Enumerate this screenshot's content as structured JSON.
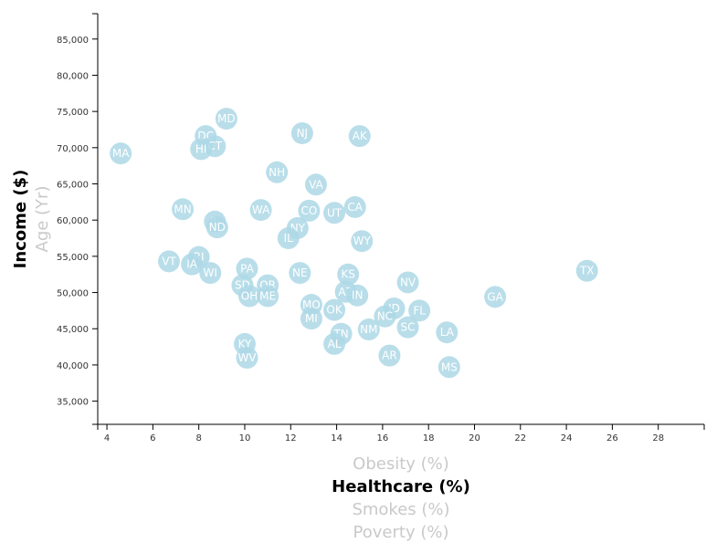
{
  "chart_data": {
    "type": "scatter",
    "x_axis": {
      "ticks": [
        4,
        6,
        8,
        10,
        12,
        14,
        16,
        18,
        20,
        22,
        24,
        26,
        28
      ],
      "range": [
        3.6,
        30
      ],
      "labels": [
        {
          "text": "Obesity (%)",
          "active": false
        },
        {
          "text": "Healthcare (%)",
          "active": true
        },
        {
          "text": "Smokes (%)",
          "active": false
        },
        {
          "text": "Poverty (%)",
          "active": false
        }
      ]
    },
    "y_axis": {
      "ticks": [
        35000,
        40000,
        45000,
        50000,
        55000,
        60000,
        65000,
        70000,
        75000,
        80000,
        85000
      ],
      "tick_labels": [
        "35,000",
        "40,000",
        "45,000",
        "50,000",
        "55,000",
        "60,000",
        "65,000",
        "70,000",
        "75,000",
        "80,000",
        "85,000"
      ],
      "range": [
        31800,
        88500
      ],
      "labels": [
        {
          "text": "Income ($)",
          "active": true
        },
        {
          "text": "Age (Yr)",
          "active": false
        }
      ]
    },
    "points": [
      {
        "abbr": "MA",
        "x": 4.6,
        "y": 69200
      },
      {
        "abbr": "MD",
        "x": 9.2,
        "y": 74000
      },
      {
        "abbr": "DC",
        "x": 8.3,
        "y": 71600
      },
      {
        "abbr": "CT",
        "x": 8.7,
        "y": 70200
      },
      {
        "abbr": "HI",
        "x": 8.1,
        "y": 69800
      },
      {
        "abbr": "NJ",
        "x": 12.5,
        "y": 72000
      },
      {
        "abbr": "AK",
        "x": 15.0,
        "y": 71600
      },
      {
        "abbr": "NH",
        "x": 11.4,
        "y": 66600
      },
      {
        "abbr": "VA",
        "x": 13.1,
        "y": 64900
      },
      {
        "abbr": "MN",
        "x": 7.3,
        "y": 61500
      },
      {
        "abbr": "WA",
        "x": 10.7,
        "y": 61400
      },
      {
        "abbr": "CO",
        "x": 12.8,
        "y": 61300
      },
      {
        "abbr": "UT",
        "x": 13.9,
        "y": 61000
      },
      {
        "abbr": "CA",
        "x": 14.8,
        "y": 61800
      },
      {
        "abbr": "IL",
        "x": 8.7,
        "y": 59800
      },
      {
        "abbr": "ND",
        "x": 8.8,
        "y": 59000
      },
      {
        "abbr": "NY",
        "x": 12.3,
        "y": 58900
      },
      {
        "abbr": "IL",
        "x": 11.9,
        "y": 57500
      },
      {
        "abbr": "WY",
        "x": 15.1,
        "y": 57100
      },
      {
        "abbr": "RI",
        "x": 8.0,
        "y": 54900
      },
      {
        "abbr": "VT",
        "x": 6.7,
        "y": 54300
      },
      {
        "abbr": "IA",
        "x": 7.7,
        "y": 53900
      },
      {
        "abbr": "WI",
        "x": 8.5,
        "y": 52700
      },
      {
        "abbr": "PA",
        "x": 10.1,
        "y": 53300
      },
      {
        "abbr": "NE",
        "x": 12.4,
        "y": 52700
      },
      {
        "abbr": "KS",
        "x": 14.5,
        "y": 52500
      },
      {
        "abbr": "TX",
        "x": 24.9,
        "y": 53000
      },
      {
        "abbr": "SD",
        "x": 9.9,
        "y": 51000
      },
      {
        "abbr": "OR",
        "x": 11.0,
        "y": 51000
      },
      {
        "abbr": "NV",
        "x": 17.1,
        "y": 51400
      },
      {
        "abbr": "OH",
        "x": 10.2,
        "y": 49500
      },
      {
        "abbr": "ME",
        "x": 11.0,
        "y": 49500
      },
      {
        "abbr": "AZ",
        "x": 14.4,
        "y": 50100
      },
      {
        "abbr": "IN",
        "x": 14.9,
        "y": 49600
      },
      {
        "abbr": "GA",
        "x": 20.9,
        "y": 49400
      },
      {
        "abbr": "MO",
        "x": 12.9,
        "y": 48300
      },
      {
        "abbr": "OK",
        "x": 13.9,
        "y": 47600
      },
      {
        "abbr": "MI",
        "x": 12.9,
        "y": 46400
      },
      {
        "abbr": "ID",
        "x": 16.5,
        "y": 47800
      },
      {
        "abbr": "NC",
        "x": 16.1,
        "y": 46700
      },
      {
        "abbr": "FL",
        "x": 17.6,
        "y": 47500
      },
      {
        "abbr": "SC",
        "x": 17.1,
        "y": 45200
      },
      {
        "abbr": "NM",
        "x": 15.4,
        "y": 44900
      },
      {
        "abbr": "TN",
        "x": 14.2,
        "y": 44300
      },
      {
        "abbr": "LA",
        "x": 18.8,
        "y": 44500
      },
      {
        "abbr": "KY",
        "x": 10.0,
        "y": 42900
      },
      {
        "abbr": "AL",
        "x": 13.9,
        "y": 42900
      },
      {
        "abbr": "WV",
        "x": 10.1,
        "y": 41000
      },
      {
        "abbr": "AR",
        "x": 16.3,
        "y": 41300
      },
      {
        "abbr": "MS",
        "x": 18.9,
        "y": 39700
      }
    ]
  }
}
